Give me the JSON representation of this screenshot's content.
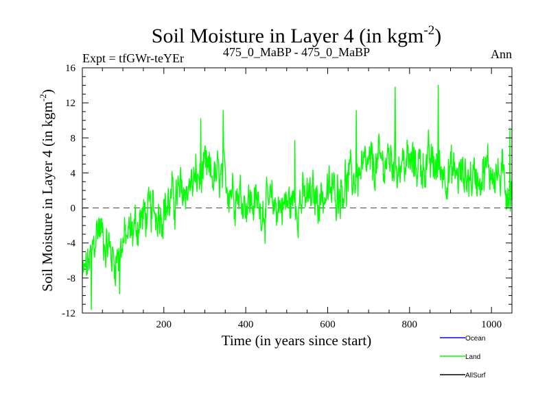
{
  "chart_data": {
    "type": "line",
    "title": "Soil Moisture in Layer 4 (in kgm",
    "title_sup": "-2",
    "title_end": ")",
    "expt_label": "Expt = tfGWr-teYEr",
    "center_label": "475_0_MaBP - 475_0_MaBP",
    "right_label": "Ann",
    "xlabel": "Time (in years since start)",
    "ylabel": "Soil Moisture in Layer 4 (in kgm",
    "ylabel_sup": "-2",
    "ylabel_end": ")",
    "xlim": [
      1,
      1050
    ],
    "ylim": [
      -12,
      16
    ],
    "xticks": [
      "200",
      "400",
      "600",
      "800",
      "1000"
    ],
    "xtick_values": [
      200,
      400,
      600,
      800,
      1000
    ],
    "yticks": [
      "-12",
      "-8",
      "-4",
      "0",
      "4",
      "8",
      "12",
      "16"
    ],
    "ytick_values": [
      -12,
      -8,
      -4,
      0,
      4,
      8,
      12,
      16
    ],
    "zero_line": 0,
    "trend_anchors": {
      "x": [
        1,
        20,
        40,
        60,
        80,
        100,
        150,
        200,
        250,
        300,
        350,
        400,
        450,
        500,
        550,
        600,
        650,
        700,
        750,
        800,
        850,
        900,
        950,
        1000,
        1050
      ],
      "y": [
        -8,
        -6,
        -2,
        -4,
        -6,
        -4,
        -1,
        0,
        2,
        4,
        3,
        1,
        0,
        0.5,
        1,
        1.5,
        3,
        4.5,
        5.5,
        5,
        5,
        4,
        3.5,
        4.5,
        2
      ]
    },
    "peaks": [
      {
        "x": 290,
        "y": 10.2
      },
      {
        "x": 345,
        "y": 11.1
      },
      {
        "x": 765,
        "y": 13.8
      },
      {
        "x": 870,
        "y": 14.0
      },
      {
        "x": 520,
        "y": 7.7
      },
      {
        "x": 670,
        "y": 11.1
      },
      {
        "x": 1045,
        "y": 9.1
      },
      {
        "x": 23,
        "y": -11.6
      },
      {
        "x": 92,
        "y": -9.8
      }
    ],
    "noise_amplitude": 2.2,
    "n_points": 1050,
    "series": [
      {
        "name": "Ocean",
        "color": "#0000ff",
        "plotted": false
      },
      {
        "name": "Land",
        "color": "#00ff00",
        "plotted": true
      },
      {
        "name": "AllSurf",
        "color": "#000000",
        "plotted": false
      }
    ]
  }
}
